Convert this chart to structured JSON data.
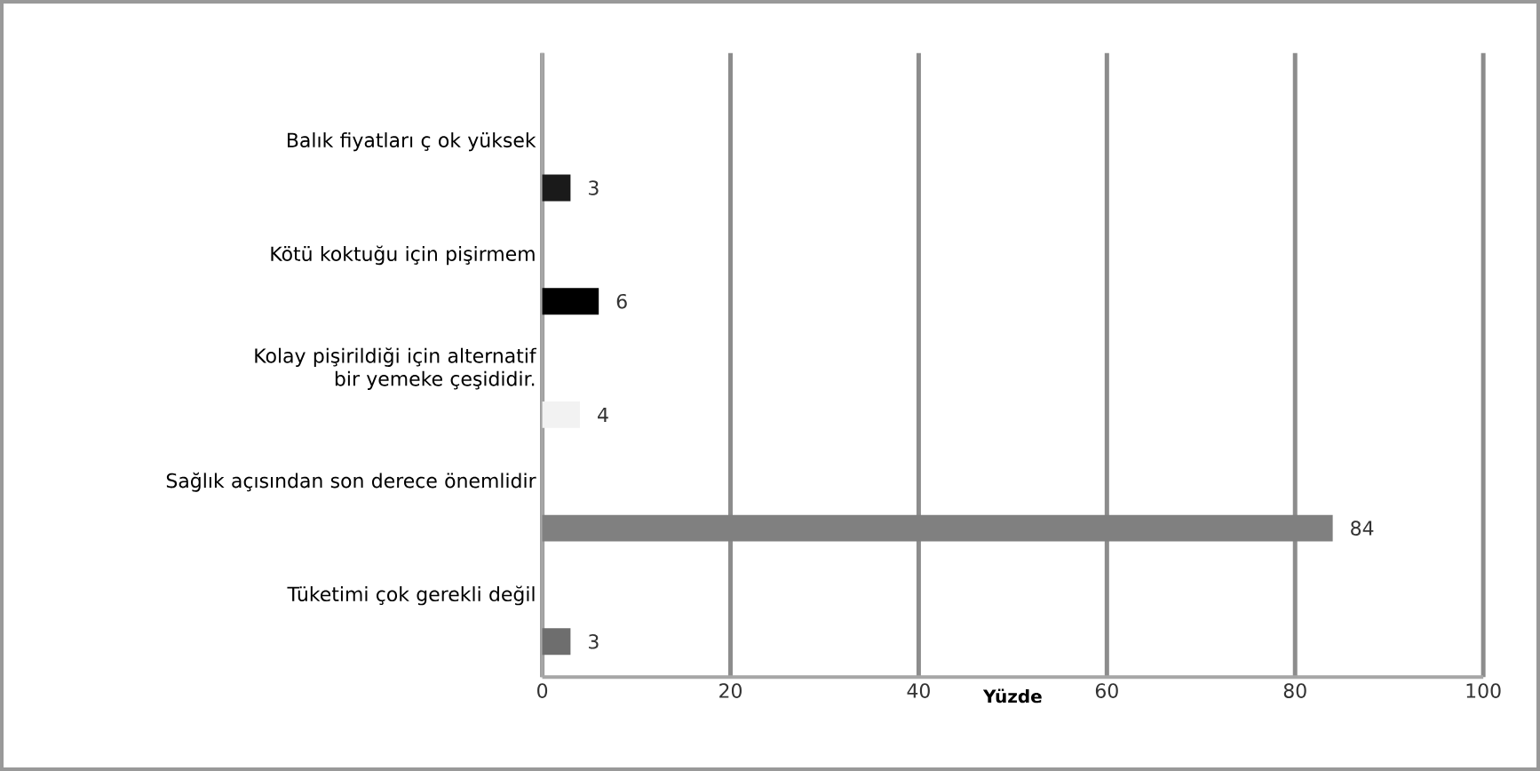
{
  "chart_data": {
    "type": "bar",
    "orientation": "horizontal",
    "xlabel": "Yüzde",
    "categories": [
      "Balık fiyatları ç ok yüksek",
      "Kötü koktuğu için pişirmem",
      "Kolay pişirildiği için alternatif bir yemeke çeşididir.",
      "Sağlık açısından son derece önemlidir",
      "Tüketimi çok gerekli değil"
    ],
    "values": [
      3,
      6,
      4,
      84,
      3
    ],
    "colors": [
      "#1a1a1a",
      "#000000",
      "#f2f2f2",
      "#808080",
      "#6e6e6e"
    ],
    "xlim": [
      0,
      100
    ],
    "xticks": [
      0,
      20,
      40,
      60,
      80,
      100
    ],
    "grid": "x",
    "data_labels": true
  }
}
